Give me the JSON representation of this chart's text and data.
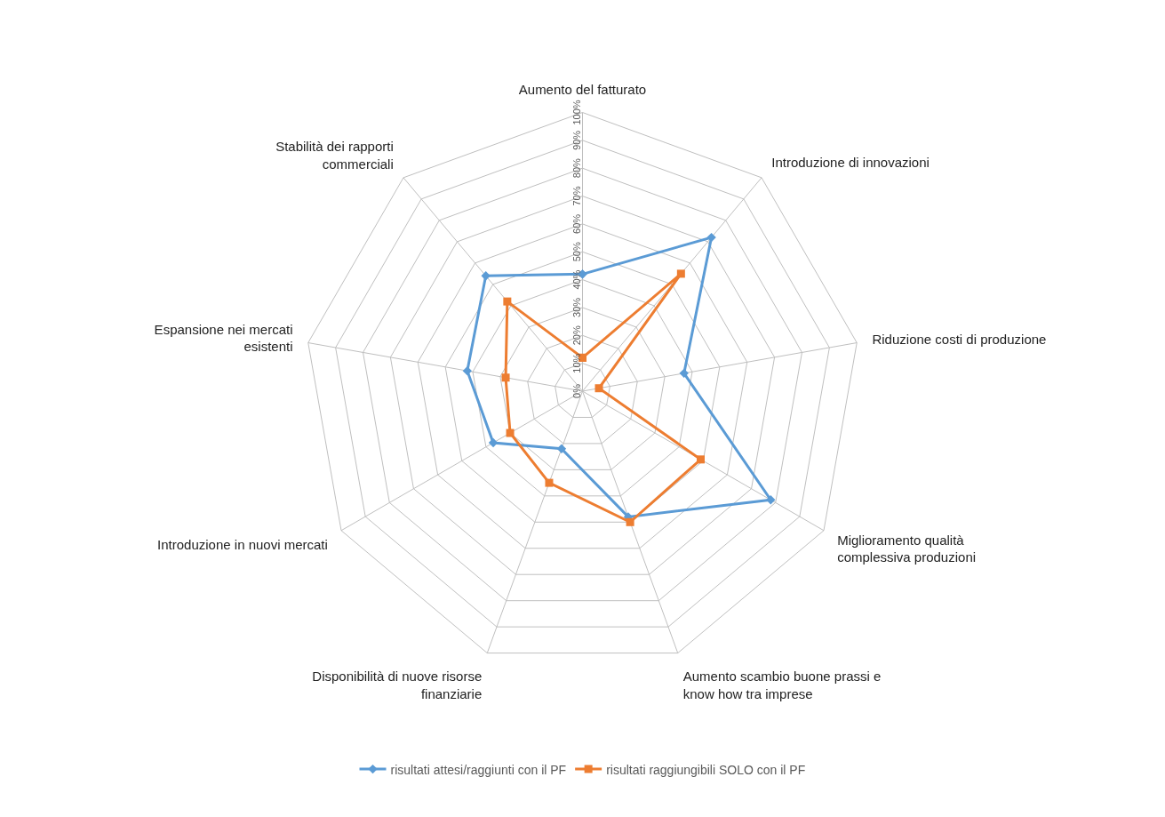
{
  "chart_data": {
    "type": "radar",
    "categories": [
      "Aumento del fatturato",
      "Introduzione di innovazioni",
      "Riduzione costi di produzione",
      "Miglioramento qualità complessiva produzioni",
      "Aumento scambio buone prassi e know how tra imprese",
      "Disponibilità di nuove risorse finanziarie",
      "Introduzione in nuovi mercati",
      "Espansione nei mercati esistenti",
      "Stabilità dei rapporti commerciali"
    ],
    "series": [
      {
        "name": "risultati attesi/raggiunti con il PF",
        "color": "#5b9bd5",
        "marker": "diamond",
        "values": [
          42,
          72,
          37,
          78,
          48,
          22,
          37,
          42,
          54
        ]
      },
      {
        "name": "risultati raggiungibili SOLO con il PF",
        "color": "#ed7d31",
        "marker": "square",
        "values": [
          12,
          55,
          6,
          49,
          50,
          35,
          30,
          28,
          42
        ]
      }
    ],
    "ylim": [
      0,
      100
    ],
    "yticks": [
      {
        "value": 0,
        "label": "0%"
      },
      {
        "value": 10,
        "label": "10%"
      },
      {
        "value": 20,
        "label": "20%"
      },
      {
        "value": 30,
        "label": "30%"
      },
      {
        "value": 40,
        "label": "40%"
      },
      {
        "value": 50,
        "label": "50%"
      },
      {
        "value": 60,
        "label": "60%"
      },
      {
        "value": 70,
        "label": "70%"
      },
      {
        "value": 80,
        "label": "80%"
      },
      {
        "value": 90,
        "label": "90%"
      },
      {
        "value": 100,
        "label": "100%"
      }
    ],
    "grid": true,
    "legend": "bottom",
    "line_style": "solid"
  }
}
